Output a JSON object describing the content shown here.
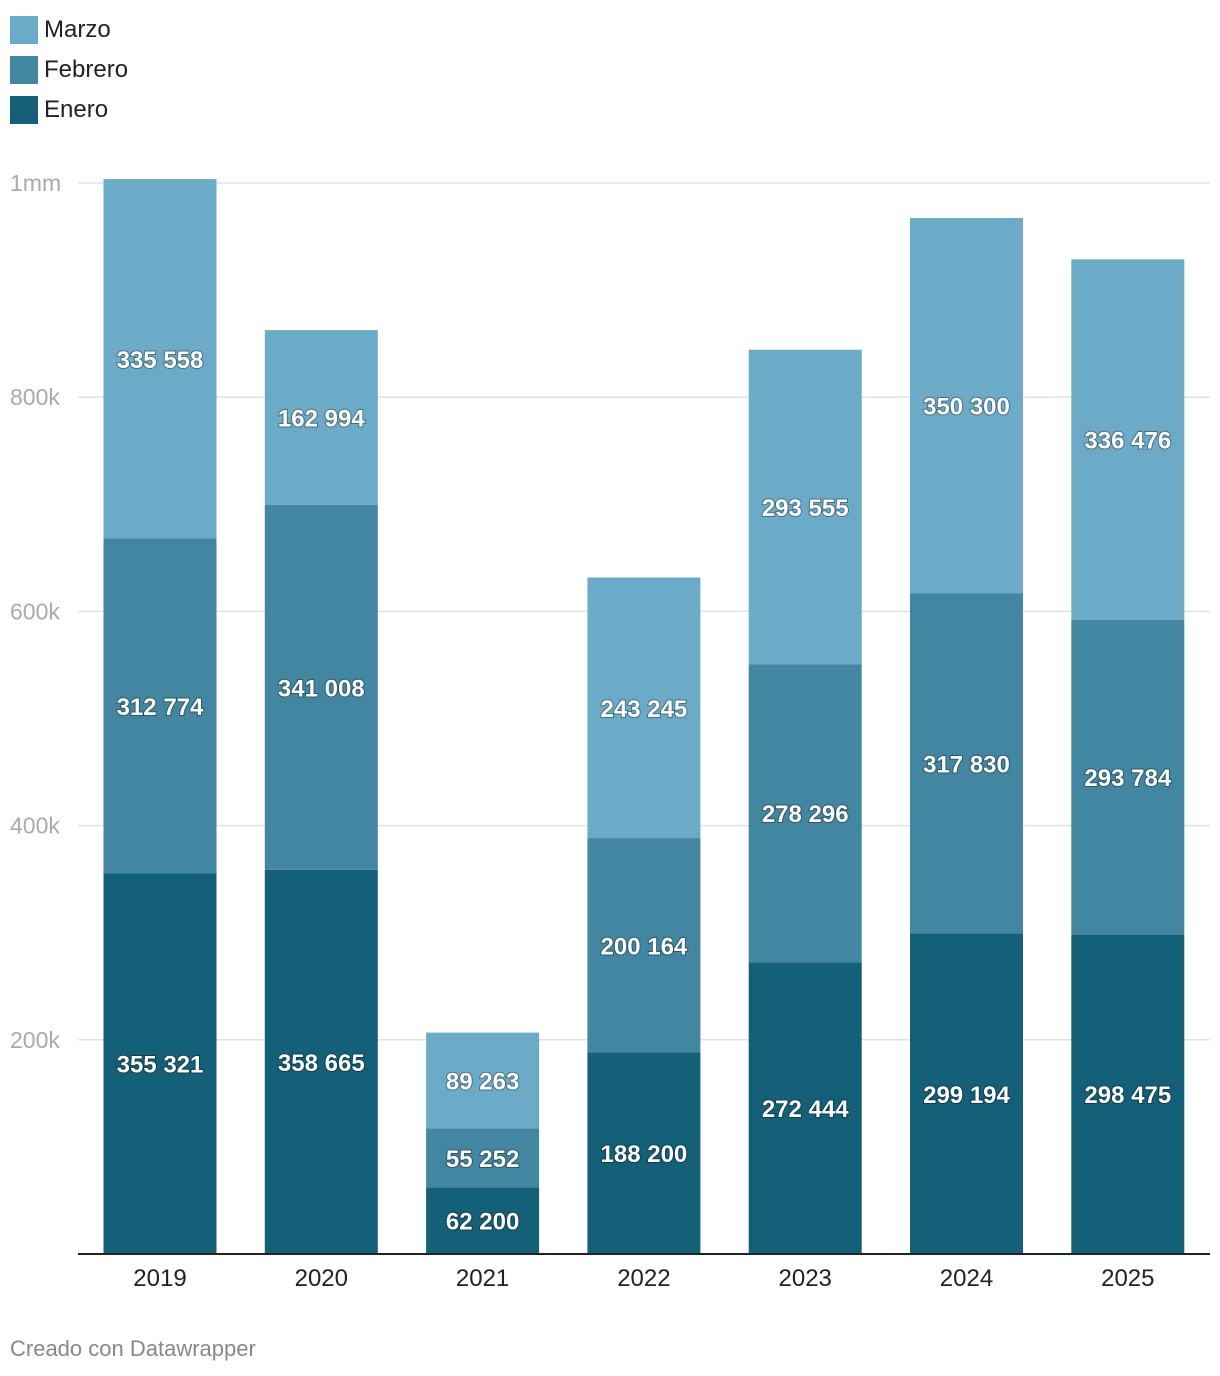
{
  "chart_data": {
    "type": "bar",
    "stacked": true,
    "title": "",
    "xlabel": "",
    "ylabel": "",
    "categories": [
      "2019",
      "2020",
      "2021",
      "2022",
      "2023",
      "2024",
      "2025"
    ],
    "series": [
      {
        "name": "Enero",
        "color": "#156079",
        "values": [
          355321,
          358665,
          62200,
          188200,
          272444,
          299194,
          298475
        ],
        "labels": [
          "355 321",
          "358 665",
          "62 200",
          "188 200",
          "272 444",
          "299 194",
          "298 475"
        ]
      },
      {
        "name": "Febrero",
        "color": "#4386a2",
        "values": [
          312774,
          341008,
          55252,
          200164,
          278296,
          317830,
          293784
        ],
        "labels": [
          "312 774",
          "341 008",
          "55 252",
          "200 164",
          "278 296",
          "317 830",
          "293 784"
        ]
      },
      {
        "name": "Marzo",
        "color": "#6cabc8",
        "values": [
          335558,
          162994,
          89263,
          243245,
          293555,
          350300,
          336476
        ],
        "labels": [
          "335 558",
          "162 994",
          "89 263",
          "243 245",
          "293 555",
          "350 300",
          "336 476"
        ]
      }
    ],
    "ylim": [
      0,
      1000000
    ],
    "yticks": [
      {
        "value": 200000,
        "label": "200k"
      },
      {
        "value": 400000,
        "label": "400k"
      },
      {
        "value": 600000,
        "label": "600k"
      },
      {
        "value": 800000,
        "label": "800k"
      },
      {
        "value": 1000000,
        "label": "1mm"
      }
    ],
    "grid": true,
    "legend_position": "top-left",
    "legend_order": [
      "Marzo",
      "Febrero",
      "Enero"
    ]
  },
  "footer": {
    "credit": "Creado con Datawrapper"
  }
}
